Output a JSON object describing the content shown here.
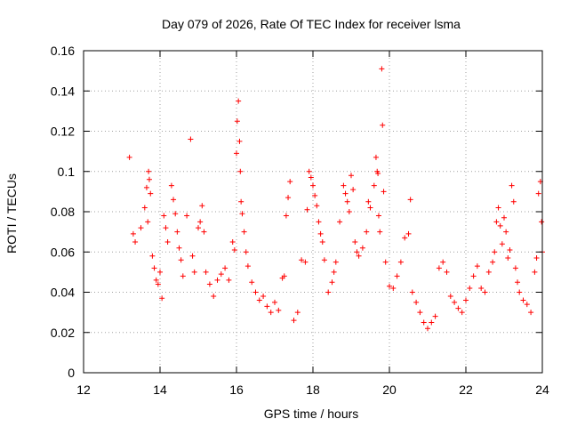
{
  "chart_data": {
    "type": "scatter",
    "title": "Day 079 of 2026, Rate Of TEC Index for receiver lsma",
    "xlabel": "GPS time / hours",
    "ylabel": "ROTI / TECUs",
    "xlim": [
      12,
      24
    ],
    "ylim": [
      0,
      0.16
    ],
    "xticks": [
      "12",
      "14",
      "16",
      "18",
      "20",
      "22",
      "24"
    ],
    "yticks": [
      "0",
      "0.02",
      "0.04",
      "0.06",
      "0.08",
      "0.1",
      "0.12",
      "0.14",
      "0.16"
    ],
    "grid": true,
    "marker": "+",
    "color": "#ff0000",
    "series": [
      {
        "name": "ROTI",
        "points": [
          [
            13.2,
            0.107
          ],
          [
            13.3,
            0.069
          ],
          [
            13.35,
            0.065
          ],
          [
            13.5,
            0.072
          ],
          [
            13.6,
            0.082
          ],
          [
            13.65,
            0.092
          ],
          [
            13.7,
            0.1
          ],
          [
            13.72,
            0.096
          ],
          [
            13.75,
            0.089
          ],
          [
            13.68,
            0.075
          ],
          [
            13.8,
            0.058
          ],
          [
            13.85,
            0.052
          ],
          [
            13.9,
            0.046
          ],
          [
            13.95,
            0.044
          ],
          [
            14.0,
            0.05
          ],
          [
            14.05,
            0.037
          ],
          [
            14.1,
            0.078
          ],
          [
            14.15,
            0.072
          ],
          [
            14.2,
            0.065
          ],
          [
            14.3,
            0.093
          ],
          [
            14.35,
            0.086
          ],
          [
            14.4,
            0.079
          ],
          [
            14.45,
            0.07
          ],
          [
            14.5,
            0.062
          ],
          [
            14.55,
            0.056
          ],
          [
            14.6,
            0.048
          ],
          [
            14.7,
            0.078
          ],
          [
            14.8,
            0.116
          ],
          [
            14.85,
            0.058
          ],
          [
            14.9,
            0.05
          ],
          [
            15.0,
            0.072
          ],
          [
            15.05,
            0.075
          ],
          [
            15.1,
            0.083
          ],
          [
            15.15,
            0.07
          ],
          [
            15.2,
            0.05
          ],
          [
            15.3,
            0.044
          ],
          [
            15.4,
            0.038
          ],
          [
            15.5,
            0.046
          ],
          [
            15.6,
            0.049
          ],
          [
            15.7,
            0.052
          ],
          [
            15.8,
            0.046
          ],
          [
            15.9,
            0.065
          ],
          [
            15.95,
            0.061
          ],
          [
            16.0,
            0.109
          ],
          [
            16.02,
            0.125
          ],
          [
            16.05,
            0.135
          ],
          [
            16.08,
            0.115
          ],
          [
            16.1,
            0.1
          ],
          [
            16.12,
            0.085
          ],
          [
            16.15,
            0.079
          ],
          [
            16.2,
            0.07
          ],
          [
            16.25,
            0.06
          ],
          [
            16.3,
            0.053
          ],
          [
            16.4,
            0.045
          ],
          [
            16.5,
            0.04
          ],
          [
            16.6,
            0.036
          ],
          [
            16.7,
            0.038
          ],
          [
            16.8,
            0.033
          ],
          [
            16.9,
            0.03
          ],
          [
            17.0,
            0.035
          ],
          [
            17.1,
            0.031
          ],
          [
            17.2,
            0.047
          ],
          [
            17.25,
            0.048
          ],
          [
            17.3,
            0.078
          ],
          [
            17.35,
            0.087
          ],
          [
            17.4,
            0.095
          ],
          [
            17.5,
            0.026
          ],
          [
            17.6,
            0.03
          ],
          [
            17.7,
            0.056
          ],
          [
            17.8,
            0.055
          ],
          [
            17.85,
            0.081
          ],
          [
            17.9,
            0.1
          ],
          [
            17.95,
            0.097
          ],
          [
            18.0,
            0.093
          ],
          [
            18.05,
            0.088
          ],
          [
            18.1,
            0.083
          ],
          [
            18.15,
            0.075
          ],
          [
            18.2,
            0.069
          ],
          [
            18.25,
            0.065
          ],
          [
            18.3,
            0.056
          ],
          [
            18.4,
            0.04
          ],
          [
            18.5,
            0.045
          ],
          [
            18.55,
            0.05
          ],
          [
            18.6,
            0.055
          ],
          [
            18.7,
            0.075
          ],
          [
            18.8,
            0.093
          ],
          [
            18.85,
            0.089
          ],
          [
            18.9,
            0.085
          ],
          [
            18.95,
            0.08
          ],
          [
            19.0,
            0.098
          ],
          [
            19.05,
            0.091
          ],
          [
            19.1,
            0.065
          ],
          [
            19.15,
            0.06
          ],
          [
            19.2,
            0.058
          ],
          [
            19.3,
            0.062
          ],
          [
            19.4,
            0.07
          ],
          [
            19.45,
            0.085
          ],
          [
            19.5,
            0.082
          ],
          [
            19.6,
            0.093
          ],
          [
            19.65,
            0.107
          ],
          [
            19.68,
            0.1
          ],
          [
            19.7,
            0.099
          ],
          [
            19.72,
            0.078
          ],
          [
            19.75,
            0.07
          ],
          [
            19.8,
            0.151
          ],
          [
            19.82,
            0.123
          ],
          [
            19.85,
            0.09
          ],
          [
            19.9,
            0.055
          ],
          [
            20.0,
            0.043
          ],
          [
            20.1,
            0.042
          ],
          [
            20.2,
            0.048
          ],
          [
            20.3,
            0.055
          ],
          [
            20.4,
            0.067
          ],
          [
            20.5,
            0.069
          ],
          [
            20.55,
            0.086
          ],
          [
            20.6,
            0.04
          ],
          [
            20.7,
            0.035
          ],
          [
            20.8,
            0.03
          ],
          [
            20.9,
            0.025
          ],
          [
            21.0,
            0.022
          ],
          [
            21.1,
            0.025
          ],
          [
            21.2,
            0.028
          ],
          [
            21.3,
            0.052
          ],
          [
            21.4,
            0.055
          ],
          [
            21.5,
            0.05
          ],
          [
            21.6,
            0.038
          ],
          [
            21.7,
            0.035
          ],
          [
            21.8,
            0.032
          ],
          [
            21.9,
            0.03
          ],
          [
            22.0,
            0.036
          ],
          [
            22.1,
            0.042
          ],
          [
            22.2,
            0.048
          ],
          [
            22.3,
            0.053
          ],
          [
            22.4,
            0.042
          ],
          [
            22.5,
            0.04
          ],
          [
            22.6,
            0.05
          ],
          [
            22.7,
            0.055
          ],
          [
            22.75,
            0.06
          ],
          [
            22.8,
            0.075
          ],
          [
            22.85,
            0.082
          ],
          [
            22.9,
            0.073
          ],
          [
            22.95,
            0.064
          ],
          [
            23.0,
            0.077
          ],
          [
            23.05,
            0.07
          ],
          [
            23.1,
            0.057
          ],
          [
            23.15,
            0.061
          ],
          [
            23.2,
            0.093
          ],
          [
            23.25,
            0.085
          ],
          [
            23.3,
            0.052
          ],
          [
            23.35,
            0.045
          ],
          [
            23.4,
            0.04
          ],
          [
            23.5,
            0.036
          ],
          [
            23.6,
            0.034
          ],
          [
            23.7,
            0.03
          ],
          [
            23.8,
            0.05
          ],
          [
            23.85,
            0.057
          ],
          [
            23.9,
            0.089
          ],
          [
            23.95,
            0.095
          ],
          [
            23.98,
            0.075
          ],
          [
            24.0,
            0.06
          ]
        ]
      }
    ]
  }
}
